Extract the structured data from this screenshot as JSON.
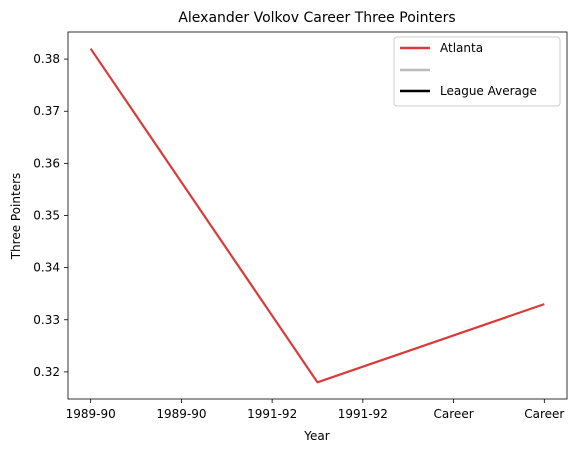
{
  "chart_data": {
    "type": "line",
    "title": "Alexander Volkov  Career Three Pointers",
    "xlabel": "Year",
    "ylabel": "Three Pointers",
    "x_tick_labels": [
      "1989-90",
      "1989-90",
      "1991-92",
      "1991-92",
      "Career",
      "Career"
    ],
    "y_ticks": [
      0.32,
      0.33,
      0.34,
      0.35,
      0.36,
      0.37,
      0.38
    ],
    "y_tick_labels": [
      "0.32",
      "0.33",
      "0.34",
      "0.35",
      "0.36",
      "0.37",
      "0.38"
    ],
    "xlim": [
      -0.25,
      5.25
    ],
    "ylim": [
      0.3148,
      0.3852
    ],
    "series": [
      {
        "name": "Atlanta",
        "color": "#d93a3a",
        "x": [
          0,
          2.5,
          5
        ],
        "y": [
          0.382,
          0.318,
          0.333
        ]
      }
    ],
    "legend": {
      "position": "top-right",
      "entries": [
        {
          "label": "Atlanta",
          "color": "#d93a3a"
        },
        {
          "label": "",
          "color": "#bbbbbb"
        },
        {
          "label": "League Average",
          "color": "#000000"
        }
      ]
    },
    "grid": false
  }
}
